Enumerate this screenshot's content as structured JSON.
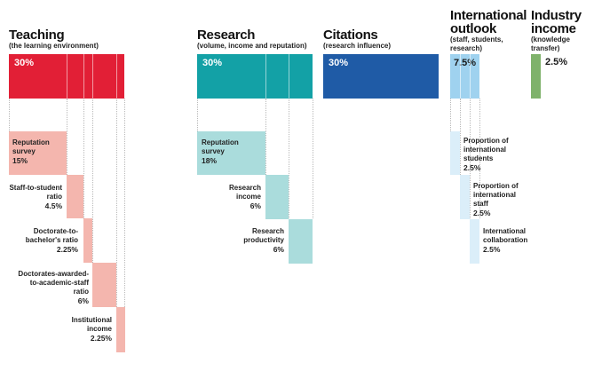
{
  "teaching": {
    "title": "Teaching",
    "subtitle": "(the learning environment)",
    "pct": "30%",
    "items": [
      {
        "label": "Reputation survey",
        "pct": "15%"
      },
      {
        "label": "Staff-to-student ratio",
        "pct": "4.5%"
      },
      {
        "label": "Doctorate-to-bachelor's ratio",
        "pct": "2.25%"
      },
      {
        "label": "Doctorates-awarded-to-academic-staff ratio",
        "pct": "6%"
      },
      {
        "label": "Institutional income",
        "pct": "2.25%"
      }
    ]
  },
  "research": {
    "title": "Research",
    "subtitle": "(volume, income and reputation)",
    "pct": "30%",
    "items": [
      {
        "label": "Reputation survey",
        "pct": "18%"
      },
      {
        "label": "Research income",
        "pct": "6%"
      },
      {
        "label": "Research productivity",
        "pct": "6%"
      }
    ]
  },
  "citations": {
    "title": "Citations",
    "subtitle": "(research influence)",
    "pct": "30%"
  },
  "international": {
    "title": "International outlook",
    "subtitle": "(staff, students, research)",
    "pct": "7.5%",
    "items": [
      {
        "label": "Proportion of international students",
        "pct": "2.5%"
      },
      {
        "label": "Proportion of international staff",
        "pct": "2.5%"
      },
      {
        "label": "International collaboration",
        "pct": "2.5%"
      }
    ]
  },
  "industry": {
    "title": "Industry income",
    "subtitle": "(knowledge transfer)",
    "pct": "2.5%"
  },
  "colors": {
    "teaching": "#e21f36",
    "teaching_light": "#f4b6ae",
    "research": "#13a1a6",
    "research_light": "#aadcdc",
    "citations": "#1f5ba6",
    "international": "#9fd2ef",
    "international_light": "#dbeef9",
    "industry": "#7fb26b"
  }
}
